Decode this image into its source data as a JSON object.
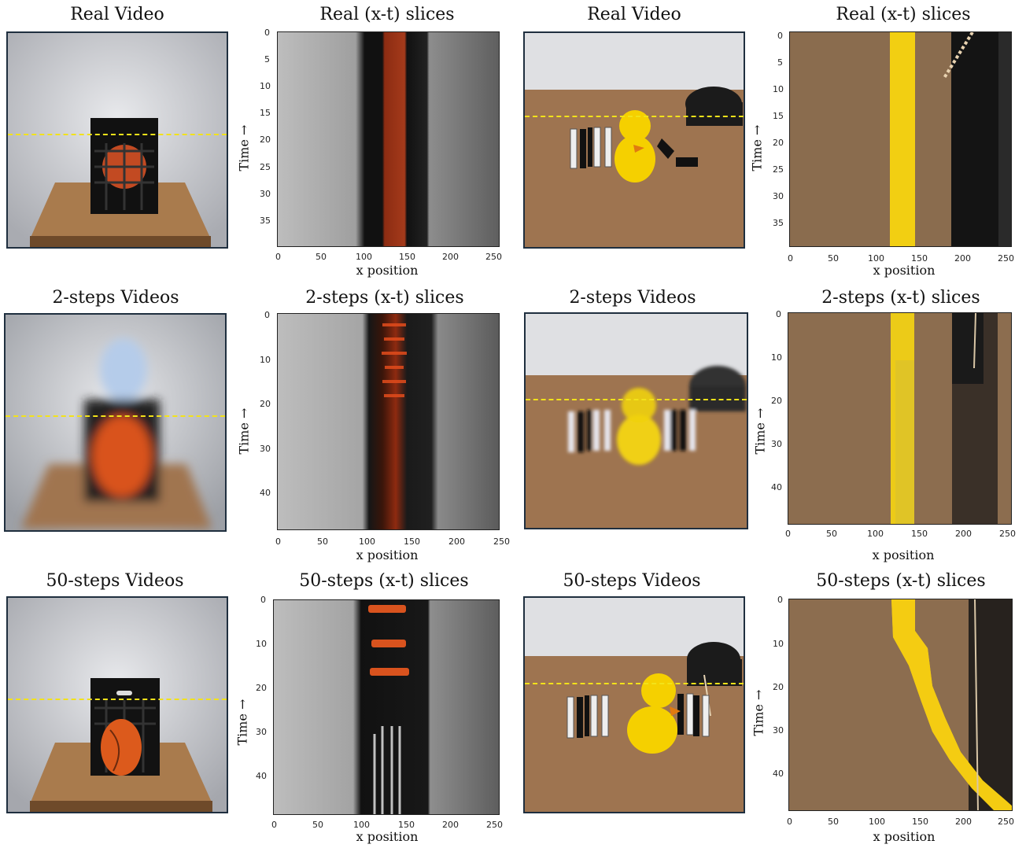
{
  "rows": [
    {
      "video_title_left": "Real Video",
      "slice_title_left": "Real (x-t) slices",
      "video_title_right": "Real Video",
      "slice_title_right": "Real (x-t) slices",
      "left_yticks": [
        "0",
        "5",
        "10",
        "15",
        "20",
        "25",
        "30",
        "35"
      ],
      "right_yticks": [
        "0",
        "5",
        "10",
        "15",
        "20",
        "25",
        "30",
        "35"
      ]
    },
    {
      "video_title_left": "2-steps Videos",
      "slice_title_left": "2-steps (x-t) slices",
      "video_title_right": "2-steps Videos",
      "slice_title_right": "2-steps (x-t) slices",
      "left_yticks": [
        "0",
        "10",
        "20",
        "30",
        "40"
      ],
      "right_yticks": [
        "0",
        "10",
        "20",
        "30",
        "40"
      ]
    },
    {
      "video_title_left": "50-steps Videos",
      "slice_title_left": "50-steps (x-t) slices",
      "video_title_right": "50-steps Videos",
      "slice_title_right": "50-steps (x-t) slices",
      "left_yticks": [
        "0",
        "10",
        "20",
        "30",
        "40"
      ],
      "right_yticks": [
        "0",
        "10",
        "20",
        "30",
        "40"
      ]
    }
  ],
  "xticks": [
    "0",
    "50",
    "100",
    "150",
    "200",
    "250"
  ],
  "xlabel": "x position",
  "ylabel": "Time →",
  "colors": {
    "guide_line": "#f2e21a",
    "rubber_duck": "#f5d000",
    "ball": "#d9531e",
    "table": "#a97b4d",
    "wall": "#c9c9c9"
  }
}
